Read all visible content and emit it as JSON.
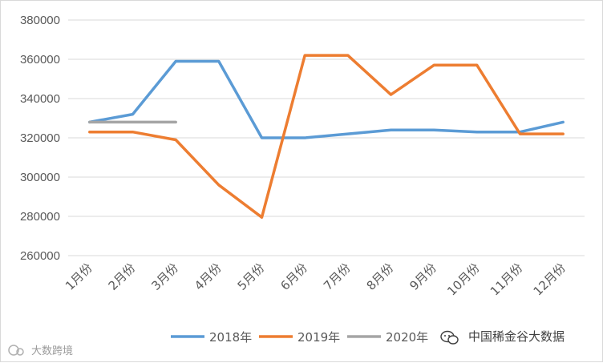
{
  "chart_data": {
    "type": "line",
    "title": "",
    "xlabel": "",
    "ylabel": "",
    "categories": [
      "1月份",
      "2月份",
      "3月份",
      "4月份",
      "5月份",
      "6月份",
      "7月份",
      "8月份",
      "9月份",
      "10月份",
      "11月份",
      "12月份"
    ],
    "ylim": [
      260000,
      380000
    ],
    "yticks": [
      260000,
      280000,
      300000,
      320000,
      340000,
      360000,
      380000
    ],
    "grid": true,
    "legend_position": "bottom",
    "series": [
      {
        "name": "2018年",
        "color": "#5b9bd5",
        "values": [
          328000,
          332000,
          359000,
          359000,
          320000,
          320000,
          322000,
          324000,
          324000,
          323000,
          323000,
          328000
        ]
      },
      {
        "name": "2019年",
        "color": "#ed7d31",
        "values": [
          323000,
          323000,
          319000,
          296000,
          279500,
          362000,
          362000,
          342000,
          357000,
          357000,
          322000,
          322000
        ]
      },
      {
        "name": "2020年",
        "color": "#a5a5a5",
        "values": [
          328000,
          328000,
          328000,
          null,
          null,
          null,
          null,
          null,
          null,
          null,
          null,
          null
        ]
      }
    ]
  },
  "watermark": {
    "right_text": "中国稀金谷大数据",
    "left_text": "大数跨境",
    "wechat_icon": "wechat-icon"
  }
}
